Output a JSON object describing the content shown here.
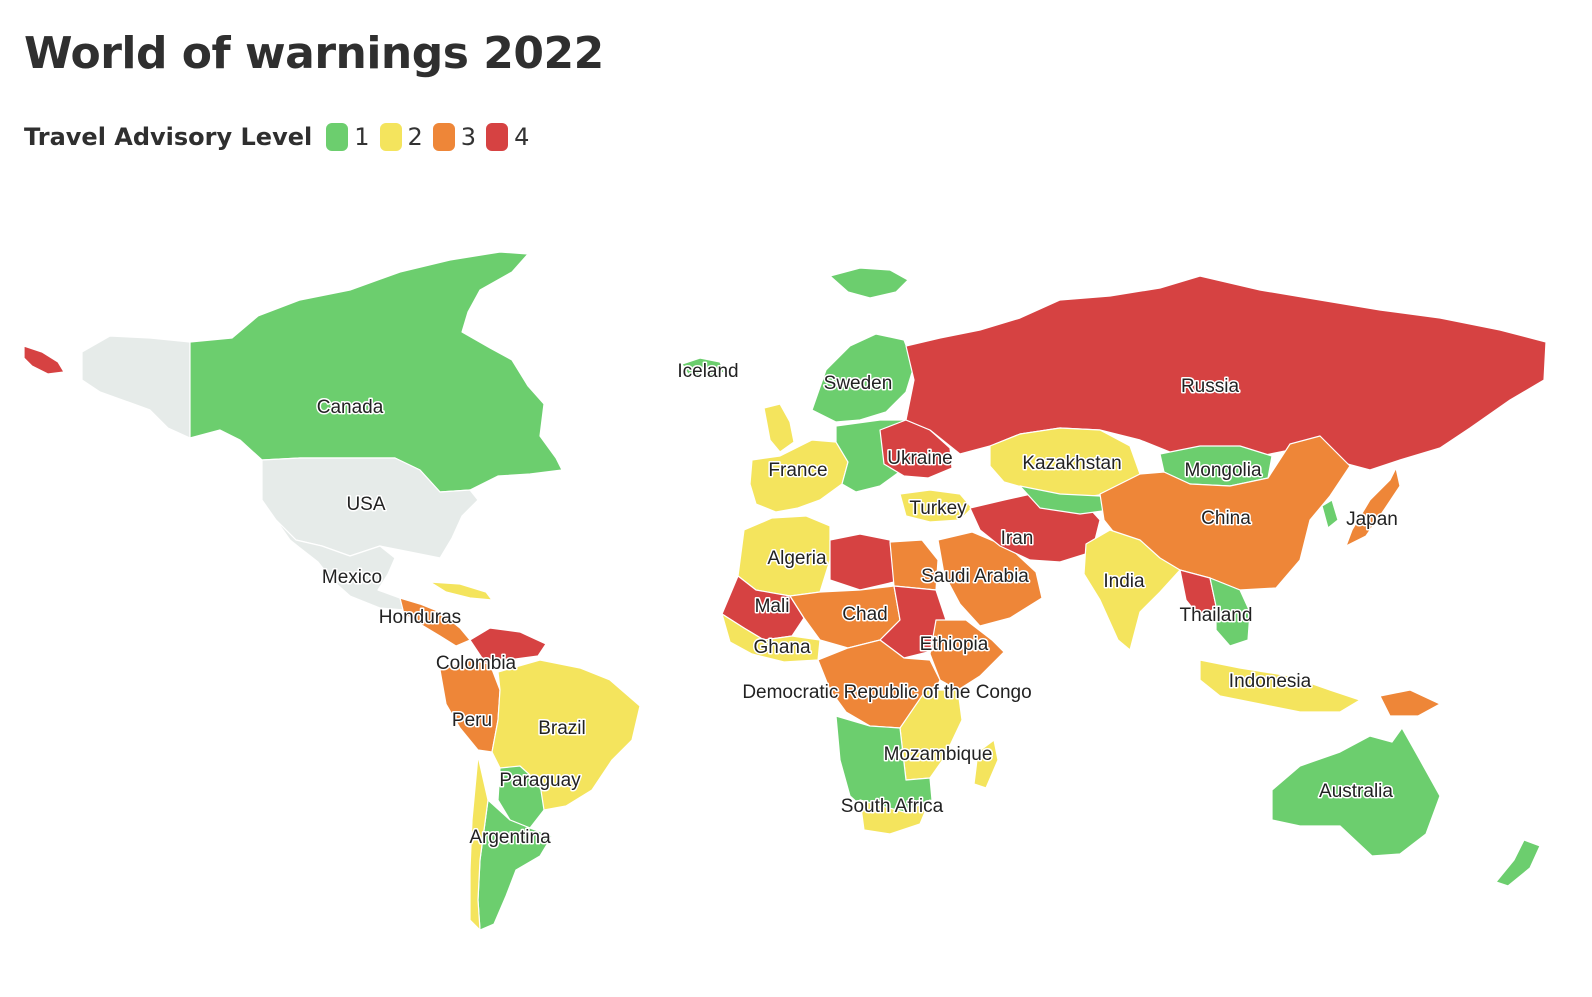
{
  "title": "World of warnings 2022",
  "legend": {
    "title": "Travel Advisory Level",
    "items": [
      {
        "label": "1",
        "color": "#6cce6e"
      },
      {
        "label": "2",
        "color": "#f4e45d"
      },
      {
        "label": "3",
        "color": "#ee8638"
      },
      {
        "label": "4",
        "color": "#d64242"
      }
    ]
  },
  "no_data_color": "#e6ebe9",
  "labels": [
    "Canada",
    "USA",
    "Mexico",
    "Honduras",
    "Colombia",
    "Peru",
    "Brazil",
    "Paraguay",
    "Argentina",
    "Iceland",
    "Sweden",
    "France",
    "Ukraine",
    "Turkey",
    "Algeria",
    "Mali",
    "Ghana",
    "Chad",
    "Saudi Arabia",
    "Ethiopia",
    "Democratic Republic of the Congo",
    "Mozambique",
    "South Africa",
    "Russia",
    "Kazakhstan",
    "Mongolia",
    "China",
    "Japan",
    "Iran",
    "India",
    "Thailand",
    "Indonesia",
    "Australia"
  ]
}
